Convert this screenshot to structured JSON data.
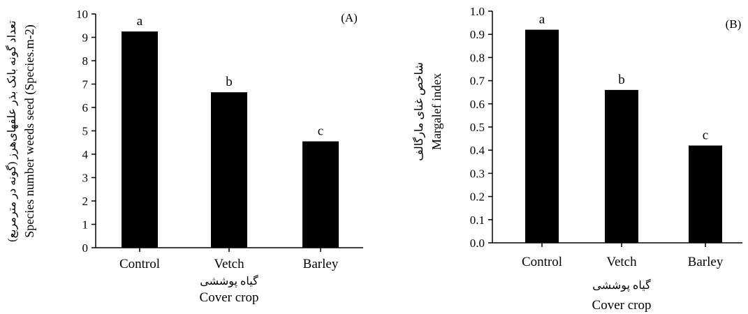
{
  "chart_data": [
    {
      "type": "bar",
      "panel_label": "(A)",
      "categories": [
        "Control",
        "Vetch",
        "Barley"
      ],
      "values": [
        9.25,
        6.65,
        4.55
      ],
      "significance_letters": [
        "a",
        "b",
        "c"
      ],
      "ylim": [
        0,
        10
      ],
      "yticks": [
        "0",
        "1",
        "2",
        "3",
        "4",
        "5",
        "6",
        "7",
        "8",
        "9",
        "10"
      ],
      "ylabel": "Species number weeds seed (Species.m-2)",
      "ylabel_fa": "تعداد گونه بانک بذر علفهای‌هرز (گونه در مترمربع)",
      "xlabel": "Cover crop",
      "xlabel_fa": "گیاه پوششی",
      "bar_color": "#000000",
      "grid": false
    },
    {
      "type": "bar",
      "panel_label": "(B)",
      "categories": [
        "Control",
        "Vetch",
        "Barley"
      ],
      "values": [
        0.92,
        0.66,
        0.42
      ],
      "significance_letters": [
        "a",
        "b",
        "c"
      ],
      "ylim": [
        0,
        1
      ],
      "yticks": [
        "0.0",
        "0.1",
        "0.2",
        "0.3",
        "0.4",
        "0.5",
        "0.6",
        "0.7",
        "0.8",
        "0.9",
        "1.0"
      ],
      "ylabel": "Margalef index",
      "ylabel_fa": "شاخص غنای مارگالف",
      "xlabel": "Cover crop",
      "xlabel_fa": "گیاه پوششی",
      "bar_color": "#000000",
      "grid": false
    }
  ]
}
